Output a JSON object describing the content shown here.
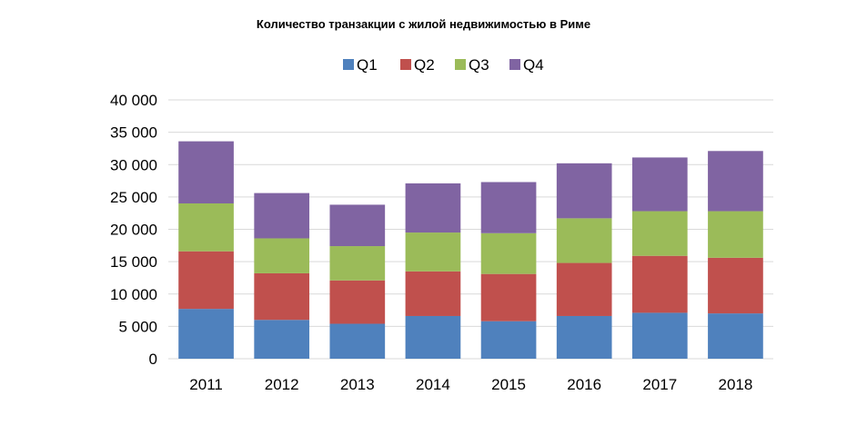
{
  "chart_data": {
    "type": "bar",
    "stacked": true,
    "title": "Количество транзакции с жилой недвижимостью в Риме",
    "categories": [
      "2011",
      "2012",
      "2013",
      "2014",
      "2015",
      "2016",
      "2017",
      "2018"
    ],
    "series": [
      {
        "name": "Q1",
        "color": "#4F81BD",
        "values": [
          7700,
          6000,
          5400,
          6600,
          5800,
          6600,
          7100,
          7000
        ]
      },
      {
        "name": "Q2",
        "color": "#C0504D",
        "values": [
          8900,
          7200,
          6700,
          6900,
          7300,
          8200,
          8800,
          8600
        ]
      },
      {
        "name": "Q3",
        "color": "#9BBB59",
        "values": [
          7400,
          5400,
          5300,
          6000,
          6300,
          6900,
          6900,
          7200
        ]
      },
      {
        "name": "Q4",
        "color": "#8064A2",
        "values": [
          9600,
          7000,
          6400,
          7600,
          7900,
          8500,
          8300,
          9300
        ]
      }
    ],
    "ylim": [
      0,
      40000
    ],
    "yticks": [
      "0",
      "5 000",
      "10 000",
      "15 000",
      "20 000",
      "25 000",
      "30 000",
      "35 000",
      "40 000"
    ],
    "ytick_values": [
      0,
      5000,
      10000,
      15000,
      20000,
      25000,
      30000,
      35000,
      40000
    ],
    "grid": true,
    "legend_position": "top"
  }
}
